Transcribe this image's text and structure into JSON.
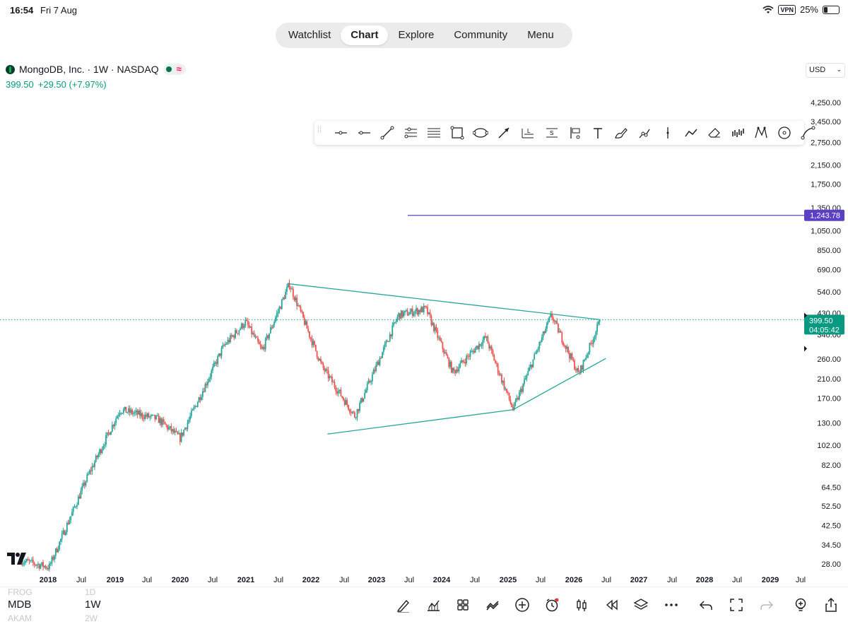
{
  "status_bar": {
    "time": "16:54",
    "date": "Fri 7 Aug",
    "vpn": "VPN",
    "battery": "25%",
    "battery_level": 0.25
  },
  "nav": {
    "tabs": [
      {
        "label": "Watchlist",
        "active": false
      },
      {
        "label": "Chart",
        "active": true
      },
      {
        "label": "Explore",
        "active": false
      },
      {
        "label": "Community",
        "active": false
      },
      {
        "label": "Menu",
        "active": false
      }
    ]
  },
  "symbol": {
    "title": "MongoDB, Inc. · 1W · NASDAQ",
    "price": "399.50",
    "change": "+29.50 (+7.97%)"
  },
  "currency": "USD",
  "chart_data": {
    "type": "candlestick",
    "symbol": "MDB",
    "interval": "1W",
    "scale": "log",
    "ylim": [
      24,
      6000
    ],
    "y_ticks": [
      "28.00",
      "34.50",
      "42.50",
      "52.50",
      "64.50",
      "82.00",
      "102.00",
      "130.00",
      "170.00",
      "210.00",
      "260.00",
      "340.00",
      "430.00",
      "540.00",
      "690.00",
      "850.00",
      "1,050.00",
      "1,350.00",
      "1,750.00",
      "2,150.00",
      "2,750.00",
      "3,450.00",
      "4,250.00"
    ],
    "x_ticks": [
      "2018",
      "Jul",
      "2019",
      "Jul",
      "2020",
      "Jul",
      "2021",
      "Jul",
      "2022",
      "Jul",
      "2023",
      "Jul",
      "2024",
      "Jul",
      "2025",
      "Jul",
      "2026",
      "Jul",
      "2027",
      "Jul",
      "2028",
      "Jul",
      "2029",
      "Jul"
    ],
    "last_price": 399.5,
    "last_price_label": "399.50",
    "countdown_label": "04:05:42",
    "horizontal_line": {
      "value": 1243.78,
      "label": "1,243.78",
      "color": "#5b3fc4"
    },
    "up_color": "#26a69a",
    "down_color": "#ef5350",
    "trend_color": "#26a69a",
    "key_points": [
      {
        "date": "2017-10",
        "price": 29
      },
      {
        "date": "2018-03",
        "price": 27
      },
      {
        "date": "2018-10",
        "price": 72
      },
      {
        "date": "2019-04",
        "price": 150
      },
      {
        "date": "2019-11",
        "price": 135
      },
      {
        "date": "2020-03",
        "price": 110
      },
      {
        "date": "2020-11",
        "price": 300
      },
      {
        "date": "2021-03",
        "price": 390
      },
      {
        "date": "2021-06",
        "price": 285
      },
      {
        "date": "2021-11",
        "price": 590
      },
      {
        "date": "2022-05",
        "price": 240
      },
      {
        "date": "2022-11",
        "price": 140
      },
      {
        "date": "2023-07",
        "price": 420
      },
      {
        "date": "2023-12",
        "price": 450
      },
      {
        "date": "2024-05",
        "price": 225
      },
      {
        "date": "2024-11",
        "price": 330
      },
      {
        "date": "2025-04",
        "price": 150
      },
      {
        "date": "2025-11",
        "price": 420
      },
      {
        "date": "2026-04",
        "price": 220
      },
      {
        "date": "2026-08",
        "price": 399.5
      }
    ],
    "trend_lines": [
      {
        "from": {
          "date": "2021-11",
          "price": 590
        },
        "to": {
          "date": "2026-08",
          "price": 399.5
        }
      },
      {
        "from": {
          "date": "2022-06",
          "price": 115
        },
        "to": {
          "date": "2025-04",
          "price": 150
        }
      },
      {
        "from": {
          "date": "2025-04",
          "price": 150
        },
        "to": {
          "date": "2026-09",
          "price": 262
        }
      }
    ]
  },
  "drawing_toolbar": {
    "tools": [
      "horizontal-ray-icon",
      "horizontal-line-icon",
      "trend-line-icon",
      "fib-retracement-icon",
      "parallel-channel-icon",
      "rectangle-icon",
      "ellipse-icon",
      "arrow-icon",
      "long-position-icon",
      "short-position-icon",
      "price-range-icon",
      "text-icon",
      "brush-icon",
      "path-icon",
      "vertical-line-icon",
      "polyline-icon",
      "eraser-icon",
      "bars-pattern-icon",
      "xabcd-pattern-icon",
      "circle-icon",
      "curve-icon"
    ]
  },
  "bottom_bar": {
    "watchlist_prev": {
      "symbol": "FROG",
      "interval": "1D"
    },
    "watchlist_current": {
      "symbol": "MDB",
      "interval": "1W"
    },
    "watchlist_next": {
      "symbol": "AKAM",
      "interval": "2W"
    },
    "icons": [
      "draw-icon",
      "indicators-icon",
      "layout-icon",
      "compare-icon",
      "add-icon",
      "alert-icon",
      "candle-type-icon",
      "replay-icon",
      "layers-icon",
      "more-icon",
      "undo-icon",
      "fullscreen-icon",
      "redo-icon",
      "idea-icon",
      "share-icon"
    ]
  }
}
